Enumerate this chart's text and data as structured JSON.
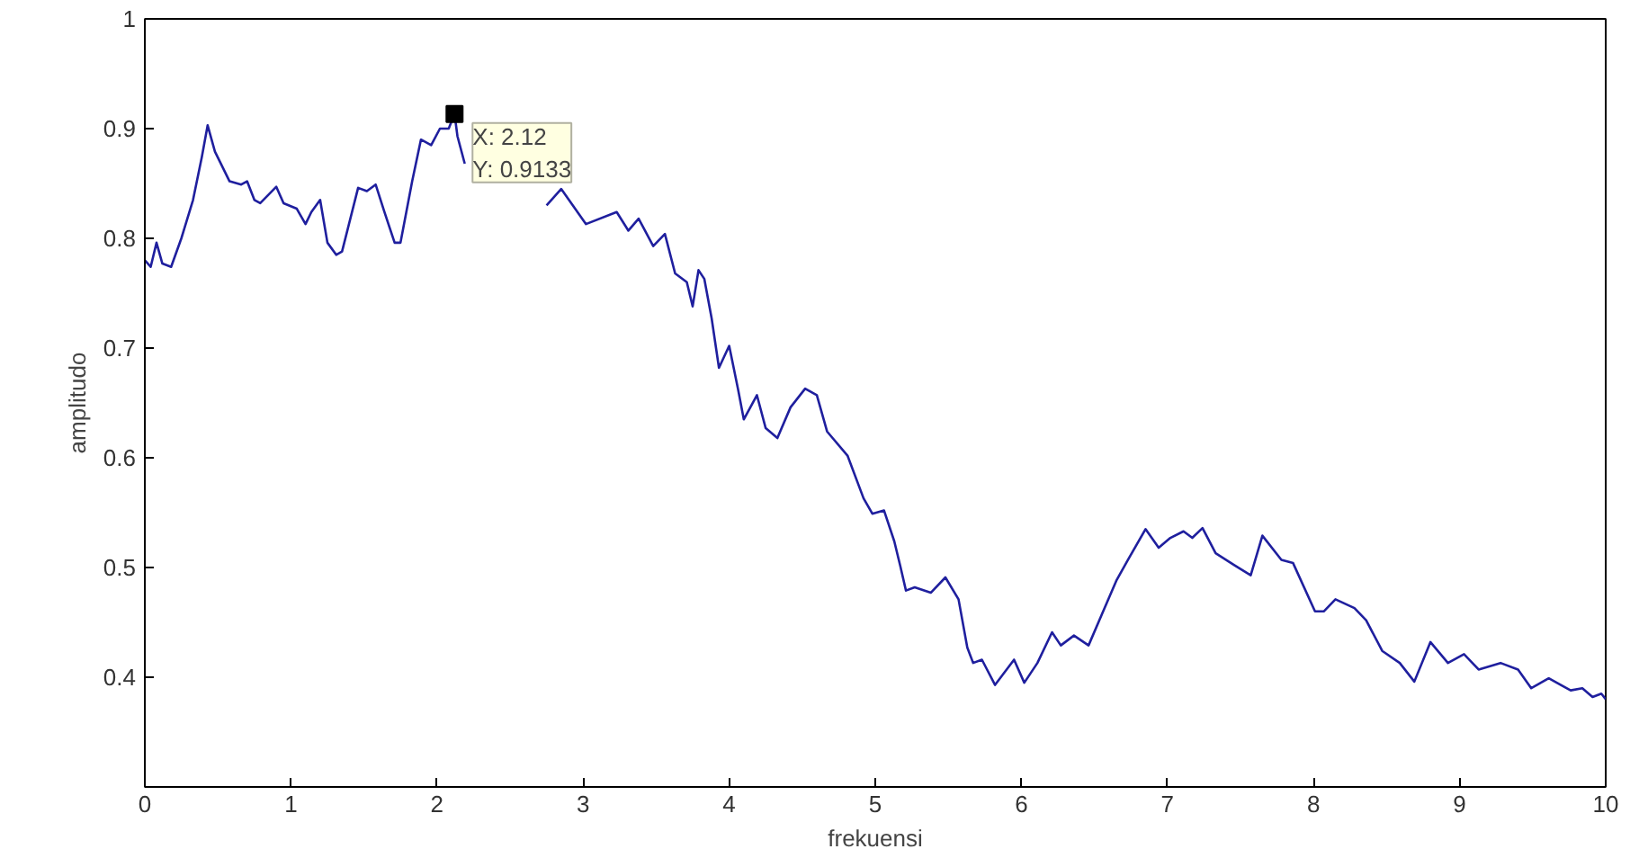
{
  "chart_data": {
    "type": "line",
    "xlabel": "frekuensi",
    "ylabel": "amplitudo",
    "xlim": [
      0,
      10
    ],
    "ylim": [
      0.3,
      1
    ],
    "xticks": [
      0,
      1,
      2,
      3,
      4,
      5,
      6,
      7,
      8,
      9,
      10
    ],
    "yticks": [
      0.4,
      0.5,
      0.6,
      0.7,
      0.8,
      0.9,
      1
    ],
    "grid": false,
    "marker": "none",
    "line_style": "solid",
    "annotations": [
      {
        "text": "X: 2.12\nY: 0.9133",
        "x": 2.12,
        "y": 0.9133
      }
    ],
    "series": [
      {
        "color": "#1f1f9e",
        "x": [
          0,
          0.04,
          0.08,
          0.12,
          0.18,
          0.25,
          0.33,
          0.39,
          0.43,
          0.48,
          0.58,
          0.66,
          0.7,
          0.75,
          0.79,
          0.9,
          0.95,
          1.04,
          1.1,
          1.14,
          1.2,
          1.25,
          1.31,
          1.35,
          1.46,
          1.52,
          1.58,
          1.64,
          1.71,
          1.75,
          1.83,
          1.89,
          1.96,
          2.02,
          2.08,
          2.12,
          2.14,
          2.19,
          2.3,
          2.45,
          2.6,
          2.75,
          2.85,
          3.02,
          3.23,
          3.31,
          3.38,
          3.48,
          3.56,
          3.63,
          3.71,
          3.75,
          3.79,
          3.83,
          3.88,
          3.93,
          4.0,
          4.06,
          4.1,
          4.19,
          4.25,
          4.33,
          4.42,
          4.52,
          4.6,
          4.67,
          4.81,
          4.92,
          4.98,
          5.06,
          5.13,
          5.17,
          5.21,
          5.27,
          5.38,
          5.48,
          5.57,
          5.63,
          5.67,
          5.73,
          5.82,
          5.95,
          6.02,
          6.11,
          6.21,
          6.27,
          6.36,
          6.46,
          6.55,
          6.65,
          6.73,
          6.85,
          6.94,
          7.02,
          7.11,
          7.17,
          7.24,
          7.33,
          7.46,
          7.57,
          7.65,
          7.78,
          7.86,
          8.01,
          8.07,
          8.15,
          8.28,
          8.36,
          8.47,
          8.59,
          8.69,
          8.8,
          8.92,
          9.03,
          9.13,
          9.28,
          9.4,
          9.49,
          9.61,
          9.76,
          9.84,
          9.91,
          9.97,
          10
        ],
        "values": [
          0.78,
          0.774,
          0.796,
          0.777,
          0.774,
          0.8,
          0.835,
          0.874,
          0.903,
          0.879,
          0.852,
          0.849,
          0.852,
          0.835,
          0.832,
          0.847,
          0.832,
          0.827,
          0.813,
          0.824,
          0.835,
          0.796,
          0.785,
          0.788,
          0.846,
          0.843,
          0.849,
          0.824,
          0.796,
          0.796,
          0.852,
          0.89,
          0.885,
          0.9,
          0.9,
          0.9133,
          0.893,
          0.868,
          null,
          null,
          null,
          0.83,
          0.845,
          0.813,
          0.824,
          0.807,
          0.818,
          0.793,
          0.804,
          0.768,
          0.76,
          0.738,
          0.771,
          0.763,
          0.727,
          0.682,
          0.702,
          0.663,
          0.635,
          0.657,
          0.627,
          0.618,
          0.646,
          0.663,
          0.657,
          0.624,
          0.602,
          0.563,
          0.549,
          0.552,
          0.524,
          0.502,
          0.479,
          0.482,
          0.477,
          0.491,
          0.471,
          0.427,
          0.413,
          0.416,
          0.393,
          0.416,
          0.395,
          0.413,
          0.441,
          0.429,
          0.438,
          0.429,
          0.457,
          0.488,
          0.507,
          0.535,
          0.518,
          0.527,
          0.533,
          0.527,
          0.536,
          0.513,
          0.502,
          0.493,
          0.529,
          0.507,
          0.504,
          0.46,
          0.46,
          0.471,
          0.463,
          0.452,
          0.424,
          0.413,
          0.396,
          0.432,
          0.413,
          0.421,
          0.407,
          0.413,
          0.407,
          0.39,
          0.399,
          0.388,
          0.39,
          0.382,
          0.385,
          0.38
        ]
      }
    ]
  }
}
